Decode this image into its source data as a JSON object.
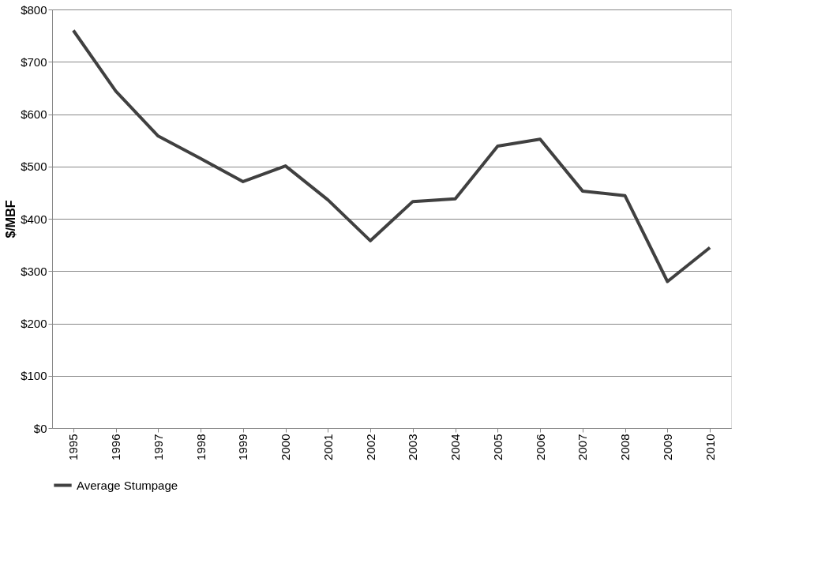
{
  "chart_data": {
    "type": "line",
    "ylabel": "$/MBF",
    "categories": [
      "1995",
      "1996",
      "1997",
      "1998",
      "1999",
      "2000",
      "2001",
      "2002",
      "2003",
      "2004",
      "2005",
      "2006",
      "2007",
      "2008",
      "2009",
      "2010"
    ],
    "series": [
      {
        "name": "Average Stumpage",
        "color": "#404040",
        "values": [
          760,
          644,
          558,
          515,
          471,
          501,
          436,
          358,
          433,
          438,
          539,
          552,
          453,
          444,
          280,
          345
        ]
      }
    ],
    "ylim": [
      0,
      800
    ],
    "yticks": [
      {
        "value": 0,
        "label": "$0"
      },
      {
        "value": 100,
        "label": "$100"
      },
      {
        "value": 200,
        "label": "$200"
      },
      {
        "value": 300,
        "label": "$300"
      },
      {
        "value": 400,
        "label": "$400"
      },
      {
        "value": 500,
        "label": "$500"
      },
      {
        "value": 600,
        "label": "$600"
      },
      {
        "value": 700,
        "label": "$700"
      },
      {
        "value": 800,
        "label": "$800"
      }
    ],
    "grid": "y",
    "legend": "bottom",
    "marker": "none",
    "line_style": "solid"
  }
}
